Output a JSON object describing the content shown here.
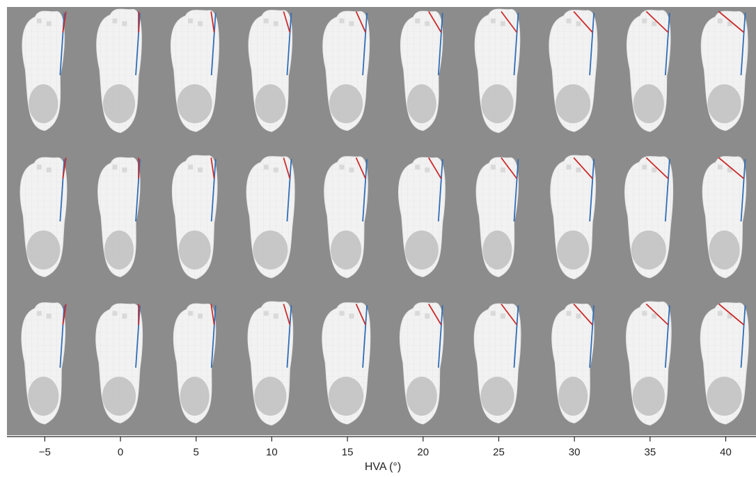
{
  "figure": {
    "background_color": "#8c8c8c",
    "foot_color": "#f2f2f2",
    "heel_color": "#c4c4c4",
    "mesh_color": "#d6d6d6",
    "blue_line_color": "#2f6db5",
    "red_line_color": "#cc2b2b",
    "rows": 3,
    "columns_per_row": 10,
    "x_axis": {
      "title": "HVA (°)",
      "range": [
        -7.5,
        42
      ],
      "tick_values": [
        -5,
        0,
        5,
        10,
        15,
        20,
        25,
        30,
        35,
        40
      ],
      "tick_labels": [
        "−5",
        "0",
        "5",
        "10",
        "15",
        "20",
        "25",
        "30",
        "35",
        "40"
      ]
    }
  }
}
